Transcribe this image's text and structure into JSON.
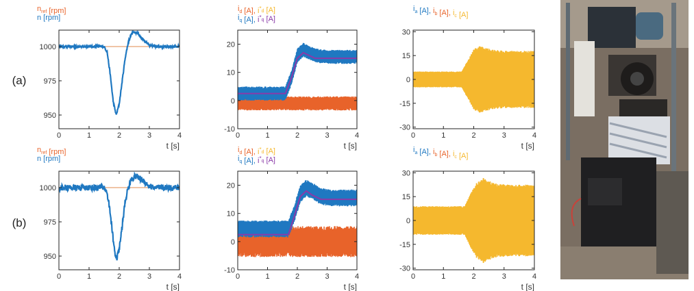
{
  "row_labels": [
    "(a)",
    "(b)"
  ],
  "colors": {
    "blue": "#1f78c1",
    "orange": "#e8632a",
    "yellow": "#f5b82e",
    "purple": "#8a3aa8",
    "ref_line": "#e8a070"
  },
  "photo": {
    "description": "photograph of the experimental motor test bench"
  },
  "chart_data": [
    {
      "id": "speed_a",
      "row": "(a)",
      "type": "line",
      "legend": [
        {
          "text": "n",
          "sub": "ref",
          "unit": " [rpm]",
          "color": "orange"
        },
        {
          "text": "n",
          "sub": "",
          "unit": " [rpm]",
          "color": "blue"
        }
      ],
      "xlabel": "t [s]",
      "xlim": [
        0,
        4
      ],
      "ylim": [
        940,
        1012
      ],
      "xticks": [
        0,
        1,
        2,
        3,
        4
      ],
      "yticks": [
        950,
        975,
        1000
      ],
      "series": [
        {
          "role": "reference",
          "color": "orange",
          "x": [
            0,
            4
          ],
          "y": [
            1000,
            1000
          ]
        },
        {
          "role": "measured",
          "color": "blue",
          "noise": 0.8,
          "x": [
            0,
            1.5,
            1.6,
            1.7,
            1.8,
            1.9,
            2.0,
            2.1,
            2.2,
            2.3,
            2.4,
            2.5,
            2.6,
            2.8,
            3.0,
            3.2,
            4.0
          ],
          "y": [
            1000,
            1000,
            996,
            980,
            960,
            950,
            958,
            975,
            992,
            1003,
            1009,
            1011,
            1010,
            1005,
            1001,
            1000,
            1000
          ]
        }
      ]
    },
    {
      "id": "currents_a",
      "row": "(a)",
      "type": "line",
      "legend": [
        {
          "text": "i",
          "sub": "d",
          "unit": " [A], ",
          "color": "orange",
          "text2": "i",
          "sub2": "d",
          "sup2": "*",
          "unit2": " [A]",
          "color2": "yellow"
        },
        {
          "text": "i",
          "sub": "q",
          "unit": " [A], ",
          "color": "blue",
          "text2": "i",
          "sub2": "q",
          "sup2": "*",
          "unit2": " [A]",
          "color2": "purple"
        }
      ],
      "xlabel": "t [s]",
      "xlim": [
        0,
        4
      ],
      "ylim": [
        -10,
        25
      ],
      "xticks": [
        0,
        1,
        2,
        3,
        4
      ],
      "yticks": [
        -10,
        0,
        10,
        20
      ],
      "series": [
        {
          "role": "id",
          "color": "orange",
          "band": 2.5,
          "x": [
            0,
            4
          ],
          "y": [
            -1,
            -1
          ]
        },
        {
          "role": "iq",
          "color": "blue",
          "band": 2.5,
          "x": [
            0,
            1.6,
            1.8,
            2.0,
            2.2,
            2.4,
            2.6,
            3.0,
            4.0
          ],
          "y": [
            2.5,
            2.5,
            8,
            16,
            18,
            17,
            16,
            15.5,
            15.5
          ]
        },
        {
          "role": "iq_ref",
          "color": "purple",
          "band": 0,
          "x": [
            0,
            1.6,
            1.8,
            2.0,
            2.2,
            2.4,
            2.6,
            3.0,
            4.0
          ],
          "y": [
            2.5,
            2.5,
            8,
            15,
            17,
            16,
            15,
            15,
            15
          ]
        }
      ]
    },
    {
      "id": "phase_a",
      "row": "(a)",
      "type": "line",
      "legend": [
        {
          "text": "i",
          "sub": "a",
          "unit": " [A], ",
          "color": "blue",
          "text2": "i",
          "sub2": "b",
          "unit2": " [A], ",
          "color2": "orange",
          "text3": "i",
          "sub3": "c",
          "unit3": " [A]",
          "color3": "yellow"
        }
      ],
      "xlabel": "t [s]",
      "xlim": [
        0,
        4
      ],
      "ylim": [
        -31,
        31
      ],
      "xticks": [
        0,
        1,
        2,
        3,
        4
      ],
      "yticks": [
        -30,
        -15,
        0,
        15,
        30
      ],
      "series": [
        {
          "role": "envelope",
          "color": "yellow",
          "x": [
            0,
            1.6,
            1.8,
            2.0,
            2.2,
            2.4,
            2.6,
            3.0,
            4.0
          ],
          "y": [
            5,
            5,
            12,
            19,
            21,
            20,
            19,
            18,
            18
          ]
        }
      ]
    },
    {
      "id": "speed_b",
      "row": "(b)",
      "type": "line",
      "legend": [
        {
          "text": "n",
          "sub": "ref",
          "unit": " [rpm]",
          "color": "orange"
        },
        {
          "text": "n",
          "sub": "",
          "unit": " [rpm]",
          "color": "blue"
        }
      ],
      "xlabel": "t [s]",
      "xlim": [
        0,
        4
      ],
      "ylim": [
        940,
        1012
      ],
      "xticks": [
        0,
        1,
        2,
        3,
        4
      ],
      "yticks": [
        950,
        975,
        1000
      ],
      "series": [
        {
          "role": "reference",
          "color": "orange",
          "x": [
            0,
            4
          ],
          "y": [
            1000,
            1000
          ]
        },
        {
          "role": "measured",
          "color": "blue",
          "noise": 2.2,
          "x": [
            0,
            1.5,
            1.6,
            1.7,
            1.8,
            1.9,
            2.0,
            2.1,
            2.2,
            2.3,
            2.4,
            2.5,
            2.6,
            2.8,
            3.0,
            3.2,
            4.0
          ],
          "y": [
            1000,
            1000,
            996,
            982,
            962,
            947,
            955,
            972,
            990,
            1000,
            1006,
            1008,
            1008,
            1005,
            1001,
            1000,
            1000
          ]
        }
      ]
    },
    {
      "id": "currents_b",
      "row": "(b)",
      "type": "line",
      "legend": [
        {
          "text": "i",
          "sub": "d",
          "unit": " [A], ",
          "color": "orange",
          "text2": "i",
          "sub2": "d",
          "sup2": "*",
          "unit2": " [A]",
          "color2": "yellow"
        },
        {
          "text": "i",
          "sub": "q",
          "unit": " [A], ",
          "color": "blue",
          "text2": "i",
          "sub2": "q",
          "sup2": "*",
          "unit2": " [A]",
          "color2": "purple"
        }
      ],
      "xlabel": "t [s]",
      "xlim": [
        0,
        4
      ],
      "ylim": [
        -10,
        25
      ],
      "xticks": [
        0,
        1,
        2,
        3,
        4
      ],
      "yticks": [
        -10,
        0,
        10,
        20
      ],
      "series": [
        {
          "role": "id",
          "color": "orange",
          "band": 5.5,
          "x": [
            0,
            4
          ],
          "y": [
            0,
            0
          ]
        },
        {
          "role": "iq",
          "color": "blue",
          "band": 3,
          "x": [
            0,
            1.7,
            1.9,
            2.1,
            2.3,
            2.5,
            2.8,
            3.2,
            4.0
          ],
          "y": [
            4.5,
            4.5,
            10,
            17,
            19,
            18,
            16,
            15.5,
            15.5
          ]
        },
        {
          "role": "iq_ref",
          "color": "purple",
          "band": 0,
          "x": [
            0,
            1.7,
            1.9,
            2.1,
            2.3,
            2.5,
            2.8,
            3.2,
            4.0
          ],
          "y": [
            2.5,
            2.5,
            9,
            16,
            18,
            16.5,
            15,
            15,
            15
          ]
        }
      ]
    },
    {
      "id": "phase_b",
      "row": "(b)",
      "type": "line",
      "legend": [
        {
          "text": "i",
          "sub": "a",
          "unit": " [A], ",
          "color": "blue",
          "text2": "i",
          "sub2": "b",
          "unit2": " [A], ",
          "color2": "orange",
          "text3": "i",
          "sub3": "c",
          "unit3": " [A]",
          "color3": "yellow"
        }
      ],
      "xlabel": "t [s]",
      "xlim": [
        0,
        4
      ],
      "ylim": [
        -31,
        31
      ],
      "xticks": [
        0,
        1,
        2,
        3,
        4
      ],
      "yticks": [
        -30,
        -15,
        0,
        15,
        30
      ],
      "series": [
        {
          "role": "envelope",
          "color": "yellow",
          "x": [
            0,
            1.7,
            1.9,
            2.1,
            2.3,
            2.5,
            2.8,
            3.2,
            4.0
          ],
          "y": [
            9,
            9,
            17,
            24,
            27,
            25,
            23,
            22.5,
            22.5
          ]
        }
      ]
    }
  ]
}
